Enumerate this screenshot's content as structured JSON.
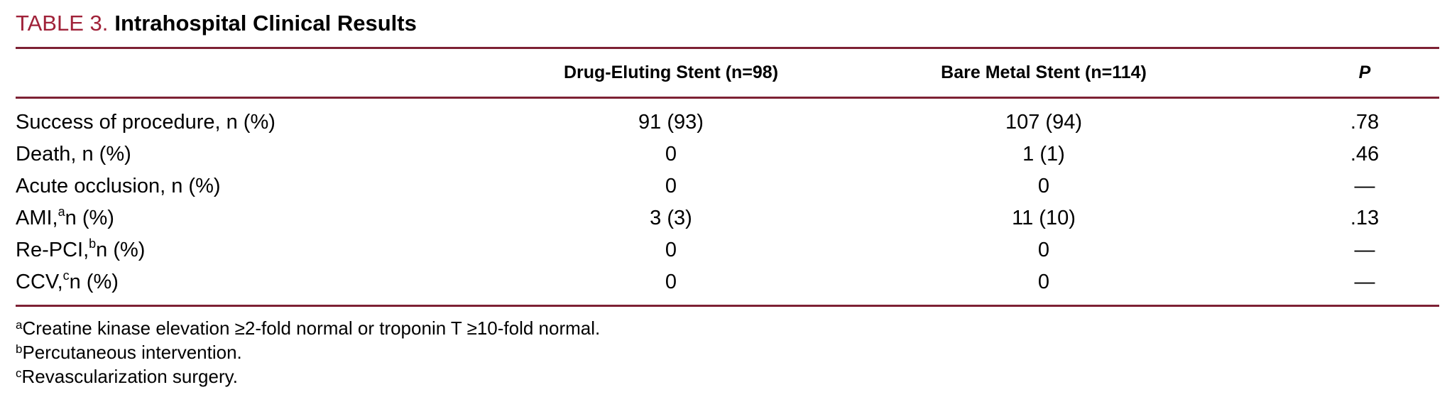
{
  "colors": {
    "title_accent": "#a02239",
    "rule": "#7d2134",
    "text": "#000000",
    "background": "#ffffff"
  },
  "table": {
    "label": "TABLE 3.",
    "title": "Intrahospital Clinical Results",
    "columns": {
      "row_header": "",
      "des": "Drug-Eluting Stent (n=98)",
      "bms": "Bare Metal Stent (n=114)",
      "p": "P"
    },
    "rows": [
      {
        "label": "Success of procedure, n (%)",
        "sup": "",
        "label_after": "",
        "des": "91 (93)",
        "bms": "107 (94)",
        "p": ".78"
      },
      {
        "label": "Death, n (%)",
        "sup": "",
        "label_after": "",
        "des": "0",
        "bms": "1 (1)",
        "p": ".46"
      },
      {
        "label": "Acute occlusion, n (%)",
        "sup": "",
        "label_after": "",
        "des": "0",
        "bms": "0",
        "p": "—"
      },
      {
        "label": "AMI,",
        "sup": "a",
        "label_after": " n (%)",
        "des": "3 (3)",
        "bms": "11 (10)",
        "p": ".13"
      },
      {
        "label": "Re-PCI,",
        "sup": "b",
        "label_after": " n (%)",
        "des": "0",
        "bms": "0",
        "p": "—"
      },
      {
        "label": "CCV,",
        "sup": "c",
        "label_after": " n (%)",
        "des": "0",
        "bms": "0",
        "p": "—"
      }
    ],
    "footnotes": [
      {
        "sup": "a",
        "text": "Creatine kinase elevation ≥2-fold normal or troponin T ≥10-fold normal."
      },
      {
        "sup": "b",
        "text": "Percutaneous intervention."
      },
      {
        "sup": "c",
        "text": "Revascularization surgery."
      }
    ]
  }
}
